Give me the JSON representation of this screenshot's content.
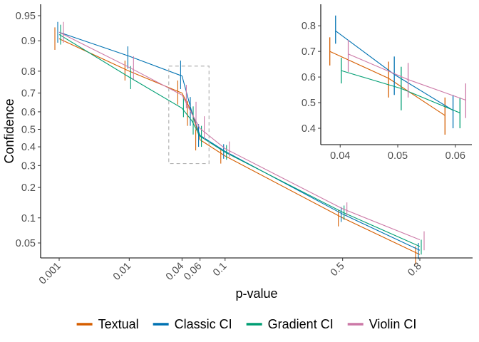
{
  "chart_data": [
    {
      "id": "main",
      "type": "line",
      "xlabel": "p-value",
      "ylabel": "Confidence",
      "x_scale": "probit",
      "y_scale": "probit",
      "xlim": [
        0.001,
        0.8
      ],
      "ylim": [
        0.05,
        0.95
      ],
      "x_ticks": [
        {
          "value": 0.001,
          "label": "0.001"
        },
        {
          "value": 0.01,
          "label": "0.01"
        },
        {
          "value": 0.04,
          "label": "0.04"
        },
        {
          "value": 0.06,
          "label": "0.06"
        },
        {
          "value": 0.1,
          "label": "0.1"
        },
        {
          "value": 0.5,
          "label": "0.5"
        },
        {
          "value": 0.8,
          "label": "0.8"
        }
      ],
      "y_ticks": [
        {
          "value": 0.05,
          "label": "0.05"
        },
        {
          "value": 0.1,
          "label": "0.1"
        },
        {
          "value": 0.2,
          "label": "0.2"
        },
        {
          "value": 0.3,
          "label": "0.3"
        },
        {
          "value": 0.4,
          "label": "0.4"
        },
        {
          "value": 0.5,
          "label": "0.5"
        },
        {
          "value": 0.6,
          "label": "0.6"
        },
        {
          "value": 0.7,
          "label": "0.7"
        },
        {
          "value": 0.8,
          "label": "0.8"
        },
        {
          "value": 0.9,
          "label": "0.9"
        },
        {
          "value": 0.95,
          "label": "0.95"
        }
      ],
      "x": [
        0.001,
        0.01,
        0.04,
        0.05,
        0.06,
        0.1,
        0.5,
        0.8
      ],
      "series": [
        {
          "name": "Textual",
          "color": "#D55E00",
          "values": [
            0.905,
            0.8,
            0.7,
            0.6,
            0.44,
            0.35,
            0.1,
            0.035
          ],
          "lower": [
            0.875,
            0.76,
            0.64,
            0.52,
            0.38,
            0.31,
            0.08,
            0.025
          ],
          "upper": [
            0.93,
            0.84,
            0.76,
            0.66,
            0.5,
            0.39,
            0.12,
            0.045
          ]
        },
        {
          "name": "Classic CI",
          "color": "#0072B2",
          "values": [
            0.92,
            0.855,
            0.78,
            0.6,
            0.465,
            0.375,
            0.11,
            0.04
          ],
          "lower": [
            0.895,
            0.81,
            0.72,
            0.52,
            0.4,
            0.335,
            0.09,
            0.03
          ],
          "upper": [
            0.94,
            0.885,
            0.84,
            0.68,
            0.53,
            0.415,
            0.13,
            0.05
          ]
        },
        {
          "name": "Gradient CI",
          "color": "#009E73",
          "values": [
            0.915,
            0.775,
            0.62,
            0.55,
            0.46,
            0.37,
            0.115,
            0.045
          ],
          "lower": [
            0.89,
            0.72,
            0.57,
            0.47,
            0.4,
            0.33,
            0.095,
            0.035
          ],
          "upper": [
            0.935,
            0.82,
            0.68,
            0.63,
            0.52,
            0.41,
            0.135,
            0.055
          ]
        },
        {
          "name": "Violin CI",
          "color": "#CC79A7",
          "values": [
            0.92,
            0.815,
            0.69,
            0.59,
            0.505,
            0.39,
            0.125,
            0.055
          ],
          "lower": [
            0.895,
            0.765,
            0.62,
            0.52,
            0.44,
            0.345,
            0.105,
            0.04
          ],
          "upper": [
            0.94,
            0.855,
            0.74,
            0.655,
            0.575,
            0.43,
            0.145,
            0.07
          ]
        }
      ],
      "legend": "bottom",
      "grid": false
    },
    {
      "id": "inset",
      "type": "line",
      "xlabel": "",
      "ylabel": "",
      "xlim": [
        0.037,
        0.0625
      ],
      "ylim": [
        0.35,
        0.87
      ],
      "x_ticks": [
        {
          "value": 0.04,
          "label": "0.04"
        },
        {
          "value": 0.05,
          "label": "0.05"
        },
        {
          "value": 0.06,
          "label": "0.06"
        }
      ],
      "y_ticks": [
        {
          "value": 0.4,
          "label": "0.4"
        },
        {
          "value": 0.5,
          "label": "0.5"
        },
        {
          "value": 0.6,
          "label": "0.6"
        },
        {
          "value": 0.7,
          "label": "0.7"
        },
        {
          "value": 0.8,
          "label": "0.8"
        }
      ],
      "series": [
        {
          "name": "Textual",
          "color": "#D55E00",
          "x": [
            0.0382,
            0.0484,
            0.0582
          ],
          "values": [
            0.7,
            0.595,
            0.45
          ],
          "lower": [
            0.645,
            0.52,
            0.375
          ],
          "upper": [
            0.755,
            0.66,
            0.52
          ]
        },
        {
          "name": "Classic CI",
          "color": "#0072B2",
          "x": [
            0.0392,
            0.0494,
            0.0596
          ],
          "values": [
            0.78,
            0.61,
            0.47
          ],
          "lower": [
            0.73,
            0.53,
            0.4
          ],
          "upper": [
            0.84,
            0.68,
            0.53
          ]
        },
        {
          "name": "Gradient CI",
          "color": "#009E73",
          "x": [
            0.0402,
            0.0506,
            0.0608
          ],
          "values": [
            0.625,
            0.555,
            0.46
          ],
          "lower": [
            0.575,
            0.47,
            0.4
          ],
          "upper": [
            0.675,
            0.64,
            0.52
          ]
        },
        {
          "name": "Violin CI",
          "color": "#CC79A7",
          "x": [
            0.0414,
            0.0518,
            0.0618
          ],
          "values": [
            0.69,
            0.59,
            0.51
          ],
          "lower": [
            0.62,
            0.52,
            0.44
          ],
          "upper": [
            0.745,
            0.655,
            0.575
          ]
        }
      ],
      "grid": false
    }
  ]
}
